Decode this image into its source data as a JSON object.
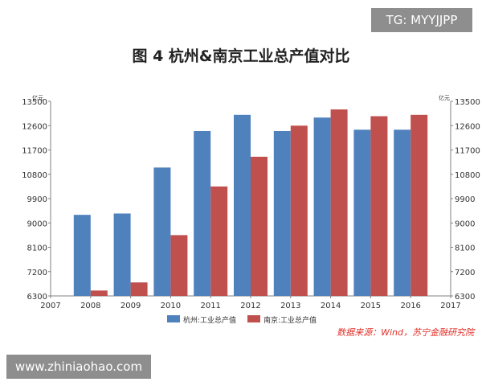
{
  "watermark_tag": "TG: MYYJJPP",
  "watermark_site": "www.zhiniaohao.com",
  "source_note": "数据来源：Wind，苏宁金融研究院",
  "colors": {
    "hangzhou": "#4f81bd",
    "nanjing": "#c0504d",
    "axis": "#808080",
    "source": "#e0302a"
  },
  "chart_data": {
    "type": "bar",
    "title": "图 4    杭州&南京工业总产值对比",
    "unit_left": "亿元",
    "unit_right": "亿元",
    "x_ticks": [
      "2007",
      "2008",
      "2009",
      "2010",
      "2011",
      "2012",
      "2013",
      "2014",
      "2015",
      "2016",
      "2017"
    ],
    "categories": [
      "2008",
      "2009",
      "2010",
      "2011",
      "2012",
      "2013",
      "2014",
      "2015",
      "2016"
    ],
    "y_ticks": [
      6300,
      7200,
      8100,
      9000,
      9900,
      10800,
      11700,
      12600,
      13500
    ],
    "ylim": [
      6300,
      13500
    ],
    "grid": false,
    "legend_position": "bottom",
    "series": [
      {
        "name": "杭州:工业总产值",
        "values": [
          9300,
          9350,
          11050,
          12400,
          13000,
          12400,
          12900,
          12450,
          12450
        ]
      },
      {
        "name": "南京:工业总产值",
        "values": [
          6500,
          6800,
          8550,
          10350,
          11450,
          12600,
          13200,
          12950,
          13000
        ]
      }
    ]
  }
}
